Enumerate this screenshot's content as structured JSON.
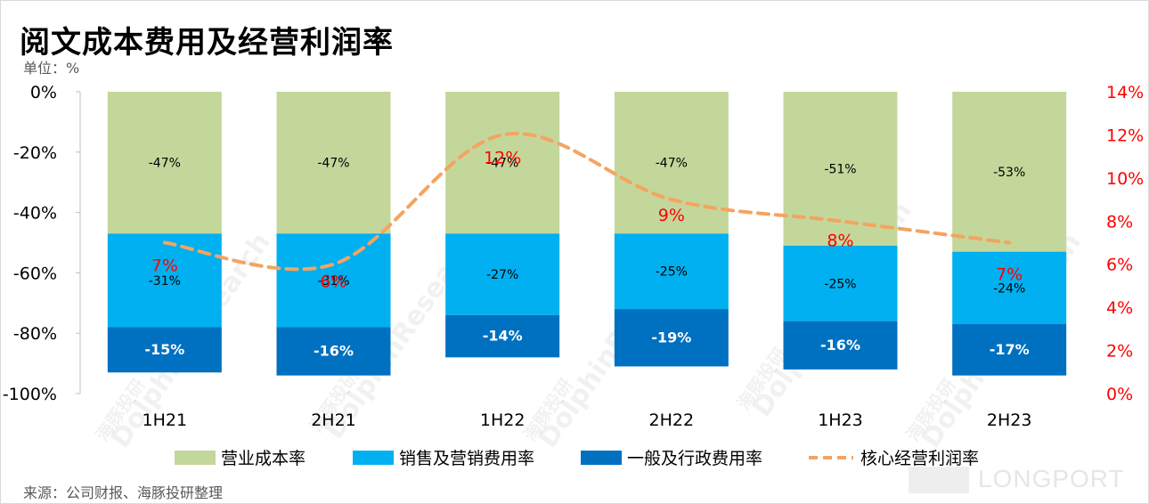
{
  "title": "阅文成本费用及经营利润率",
  "unit": "单位：%",
  "source": "来源：公司财报、海豚投研整理",
  "brand": "LONGPORT",
  "watermark": {
    "en": "DolphinResearch",
    "cn": "海豚投研"
  },
  "chart_data": {
    "type": "bar",
    "stacked": true,
    "categories": [
      "1H21",
      "2H21",
      "1H22",
      "2H22",
      "1H23",
      "2H23"
    ],
    "series": [
      {
        "name": "营业成本率",
        "axis": "left",
        "color": "#c4d79b",
        "values": [
          -47,
          -47,
          -47,
          -47,
          -51,
          -53
        ],
        "labels": [
          "-47%",
          "-47%",
          "-47%",
          "-47%",
          "-51%",
          "-53%"
        ]
      },
      {
        "name": "销售及营销费用率",
        "axis": "left",
        "color": "#00b0f0",
        "values": [
          -31,
          -31,
          -27,
          -25,
          -25,
          -24
        ],
        "labels": [
          "-31%",
          "-31%",
          "-27%",
          "-25%",
          "-25%",
          "-24%"
        ]
      },
      {
        "name": "一般及行政费用率",
        "axis": "left",
        "color": "#0070c0",
        "values": [
          -15,
          -16,
          -14,
          -19,
          -16,
          -17
        ],
        "labels": [
          "-15%",
          "-16%",
          "-14%",
          "-19%",
          "-16%",
          "-17%"
        ]
      }
    ],
    "line": {
      "name": "核心经营利润率",
      "type": "line",
      "axis": "right",
      "style": "dashed",
      "color": "#f4a460",
      "values": [
        7,
        6,
        12,
        9,
        8,
        7
      ],
      "labels": [
        "7%",
        "6%",
        "12%",
        "9%",
        "8%",
        "7%"
      ],
      "label_color": "#ff0000"
    },
    "y_left": {
      "min": -100,
      "max": 0,
      "ticks": [
        0,
        -20,
        -40,
        -60,
        -80,
        -100
      ],
      "tick_labels": [
        "0%",
        "-20%",
        "-40%",
        "-60%",
        "-80%",
        "-100%"
      ]
    },
    "y_right": {
      "min": 0,
      "max": 14,
      "ticks": [
        14,
        12,
        10,
        8,
        6,
        4,
        2,
        0
      ],
      "tick_labels": [
        "14%",
        "12%",
        "10%",
        "8%",
        "6%",
        "4%",
        "2%",
        "0%"
      ],
      "color": "#ff0000"
    },
    "legend_position": "bottom",
    "grid": false
  }
}
